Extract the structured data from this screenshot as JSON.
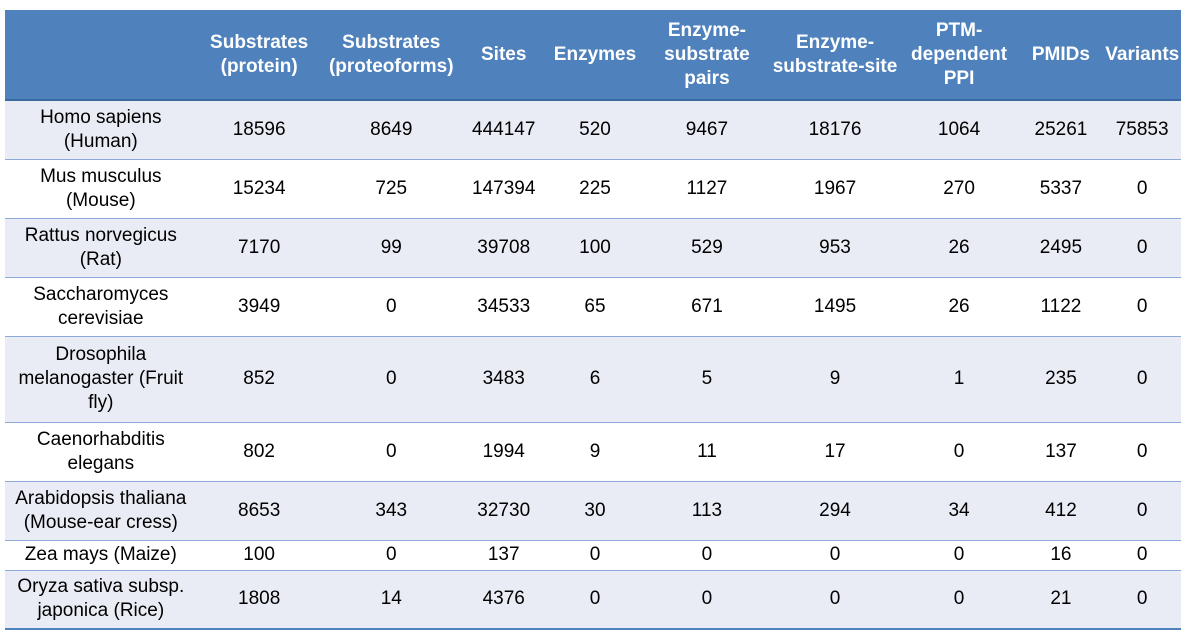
{
  "table": {
    "headers": [
      "",
      "Substrates (protein)",
      "Substrates (proteoforms)",
      "Sites",
      "Enzymes",
      "Enzyme-substrate pairs",
      "Enzyme-substrate-site",
      "PTM-dependent PPI",
      "PMIDs",
      "Variants"
    ],
    "rows": [
      [
        "Homo sapiens (Human)",
        "18596",
        "8649",
        "444147",
        "520",
        "9467",
        "18176",
        "1064",
        "25261",
        "75853"
      ],
      [
        "Mus musculus (Mouse)",
        "15234",
        "725",
        "147394",
        "225",
        "1127",
        "1967",
        "270",
        "5337",
        "0"
      ],
      [
        "Rattus norvegicus (Rat)",
        "7170",
        "99",
        "39708",
        "100",
        "529",
        "953",
        "26",
        "2495",
        "0"
      ],
      [
        "Saccharomyces cerevisiae",
        "3949",
        "0",
        "34533",
        "65",
        "671",
        "1495",
        "26",
        "1122",
        "0"
      ],
      [
        "Drosophila melanogaster (Fruit fly)",
        "852",
        "0",
        "3483",
        "6",
        "5",
        "9",
        "1",
        "235",
        "0"
      ],
      [
        "Caenorhabditis elegans",
        "802",
        "0",
        "1994",
        "9",
        "11",
        "17",
        "0",
        "137",
        "0"
      ],
      [
        "Arabidopsis thaliana (Mouse-ear cress)",
        "8653",
        "343",
        "32730",
        "30",
        "113",
        "294",
        "34",
        "412",
        "0"
      ],
      [
        "Zea mays (Maize)",
        "100",
        "0",
        "137",
        "0",
        "0",
        "0",
        "0",
        "16",
        "0"
      ],
      [
        "Oryza sativa subsp. japonica (Rice)",
        "1808",
        "14",
        "4376",
        "0",
        "0",
        "0",
        "0",
        "21",
        "0"
      ]
    ]
  },
  "colors": {
    "header_bg": "#4f81bd",
    "row_band": "#e9ecf5",
    "row_plain": "#ffffff"
  }
}
